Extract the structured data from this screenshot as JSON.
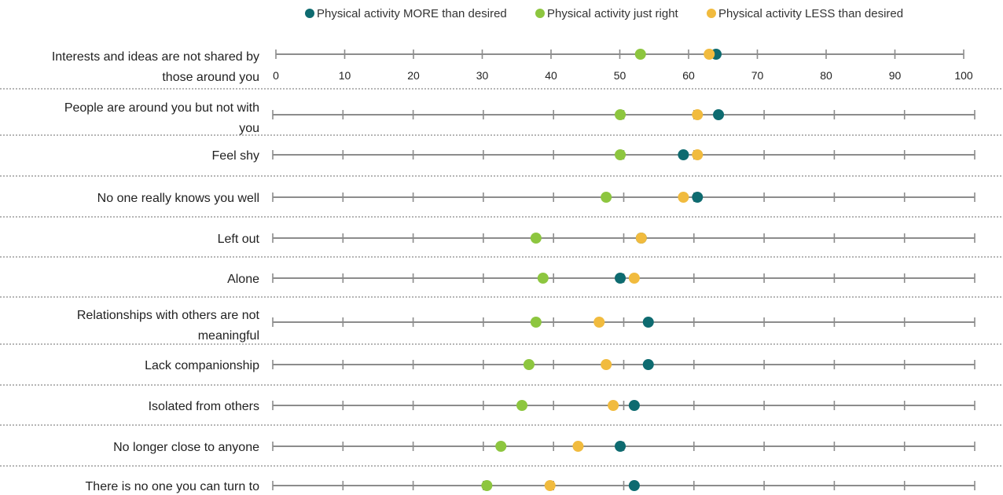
{
  "chart_data": {
    "type": "scatter",
    "title": "",
    "xlim": [
      0,
      100
    ],
    "x_ticks": [
      0,
      10,
      20,
      30,
      40,
      50,
      60,
      70,
      80,
      90,
      100
    ],
    "grid": false,
    "legend_position": "top-center",
    "legend": [
      {
        "name": "Physical activity MORE than desired",
        "color": "#0e6b70"
      },
      {
        "name": "Physical activity just right",
        "color": "#8dc63f"
      },
      {
        "name": "Physical activity LESS than desired",
        "color": "#f1bb3e"
      }
    ],
    "rows": [
      {
        "lines": [
          "Interests and ideas are not shared by",
          "those around you"
        ],
        "more": 64,
        "right": 53,
        "less": 63
      },
      {
        "lines": [
          "People are around you but not with",
          "you"
        ],
        "more": 63.5,
        "right": 49.5,
        "less": 60.5
      },
      {
        "lines": [
          "Feel shy"
        ],
        "more": 58.5,
        "right": 49.5,
        "less": 60.5
      },
      {
        "lines": [
          "No one really knows you well"
        ],
        "more": 60.5,
        "right": 47.5,
        "less": 58.5
      },
      {
        "lines": [
          "Left out"
        ],
        "more": 52.5,
        "right": 37.5,
        "less": 52.5
      },
      {
        "lines": [
          "Alone"
        ],
        "more": 49.5,
        "right": 38.5,
        "less": 51.5
      },
      {
        "lines": [
          "Relationships with others are not",
          "meaningful"
        ],
        "more": 53.5,
        "right": 37.5,
        "less": 46.5
      },
      {
        "lines": [
          "Lack companionship"
        ],
        "more": 53.5,
        "right": 36.5,
        "less": 47.5
      },
      {
        "lines": [
          "Isolated from others"
        ],
        "more": 51.5,
        "right": 35.5,
        "less": 48.5
      },
      {
        "lines": [
          "No longer close to anyone"
        ],
        "more": 49.5,
        "right": 32.5,
        "less": 43.5
      },
      {
        "lines": [
          "There is no one you can turn to"
        ],
        "more": 51.5,
        "right": 30.5,
        "less": 39.5
      }
    ]
  }
}
